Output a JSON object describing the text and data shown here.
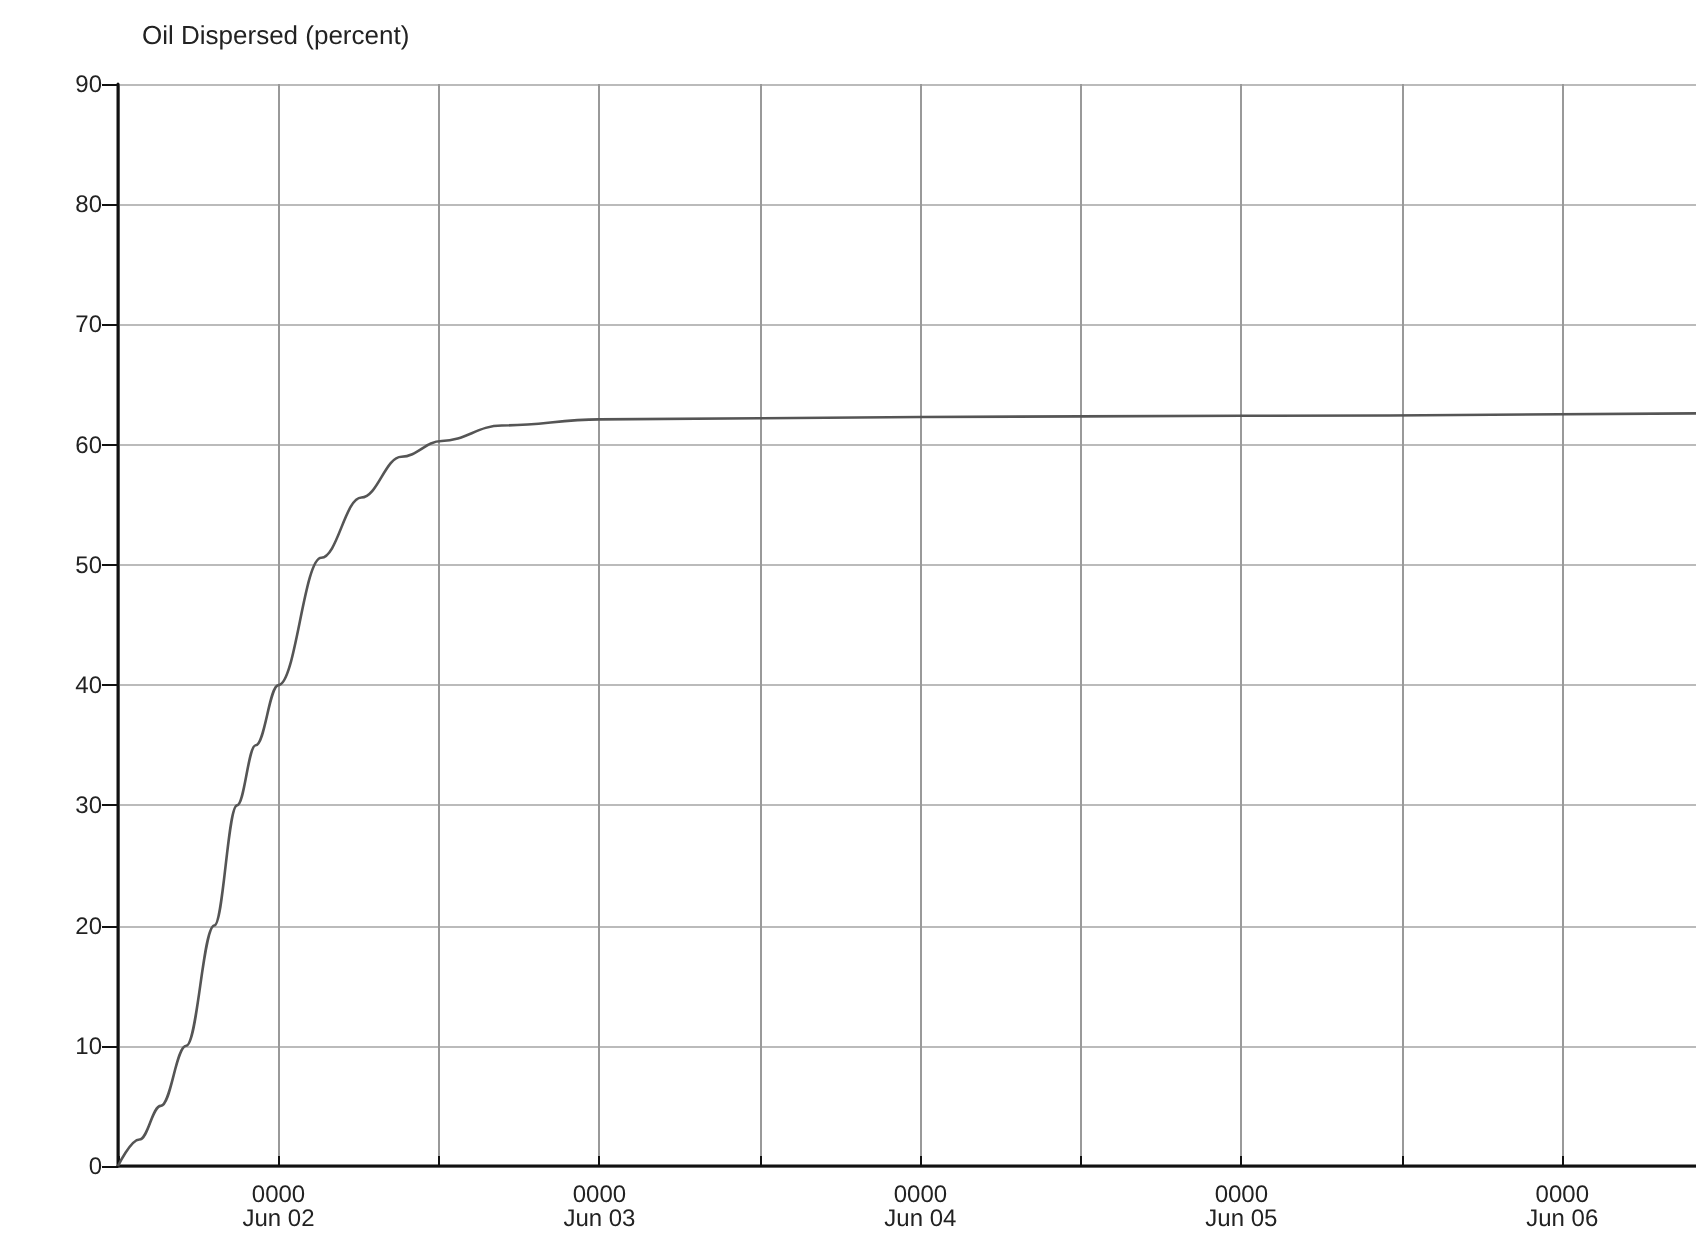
{
  "chart_data": {
    "type": "line",
    "title": "Oil Dispersed (percent)",
    "x": [
      "--06-01T12:00",
      "--06-01T13:36",
      "--06-01T15:12",
      "--06-01T17:06",
      "--06-01T19:12",
      "--06-01T20:54",
      "--06-01T22:18",
      "--06-02T00:00",
      "--06-02T03:12",
      "--06-02T06:12",
      "--06-02T09:12",
      "--06-02T12:12",
      "--06-02T16:42",
      "--06-03T00:00",
      "--06-04T00:00",
      "--06-05T00:00",
      "--06-06T10:00"
    ],
    "series": [
      {
        "color": "#555555",
        "values": [
          0,
          2.2,
          5,
          10,
          20,
          30,
          35,
          40,
          50.6,
          55.6,
          59,
          60.3,
          61.6,
          62.1,
          62.3,
          62.4,
          62.6
        ]
      }
    ],
    "xlim": [
      "--06-01T12:00",
      "--06-06T10:00"
    ],
    "xticks": [
      {
        "value": "--06-01T12:00",
        "label": null
      },
      {
        "value": "--06-02T00:00",
        "label": "0000\nJun 02"
      },
      {
        "value": "--06-02T12:00",
        "label": null
      },
      {
        "value": "--06-03T00:00",
        "label": "0000\nJun 03"
      },
      {
        "value": "--06-03T12:00",
        "label": null
      },
      {
        "value": "--06-04T00:00",
        "label": "0000\nJun 04"
      },
      {
        "value": "--06-04T12:00",
        "label": null
      },
      {
        "value": "--06-05T00:00",
        "label": "0000\nJun 05"
      },
      {
        "value": "--06-05T12:00",
        "label": null
      },
      {
        "value": "--06-06T00:00",
        "label": "0000\nJun 06"
      }
    ],
    "ylim": [
      0,
      90
    ],
    "yticks": [
      0,
      10,
      20,
      30,
      40,
      50,
      60,
      70,
      80,
      90
    ],
    "grid": true,
    "marker": "none",
    "line_style": "solid"
  }
}
